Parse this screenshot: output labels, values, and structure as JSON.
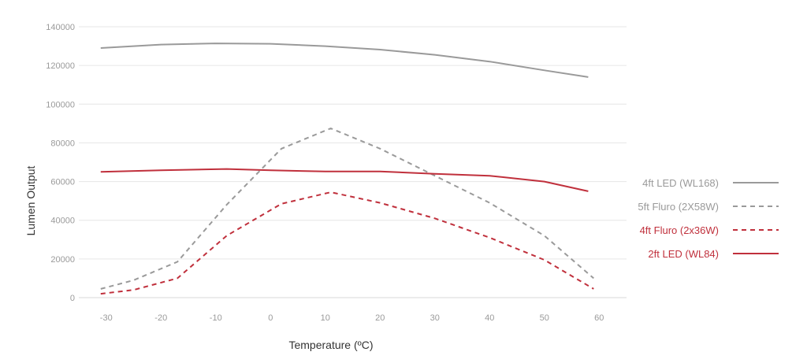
{
  "chart_data": {
    "type": "line",
    "xlabel": "Temperature (ºC)",
    "ylabel": "Lumen Output",
    "xlim": [
      -35,
      65
    ],
    "ylim": [
      0,
      140000
    ],
    "x_ticks": [
      "-30",
      "-20",
      "-10",
      "0",
      "10",
      "20",
      "30",
      "40",
      "50",
      "60"
    ],
    "y_ticks": [
      "0",
      "20000",
      "40000",
      "60000",
      "80000",
      "100000",
      "120000",
      "140000"
    ],
    "grid": "horizontal",
    "legend_position": "right",
    "series": [
      {
        "name": "4ft LED (WL168)",
        "color": "#9a9a9a",
        "dash": "solid",
        "points": [
          [
            -31,
            129000
          ],
          [
            -20,
            130800
          ],
          [
            -10,
            131400
          ],
          [
            0,
            131200
          ],
          [
            10,
            130000
          ],
          [
            20,
            128200
          ],
          [
            30,
            125500
          ],
          [
            40,
            122000
          ],
          [
            50,
            117500
          ],
          [
            58,
            114000
          ]
        ]
      },
      {
        "name": "5ft Fluro (2X58W)",
        "color": "#9a9a9a",
        "dash": "dashed",
        "points": [
          [
            -31,
            4500
          ],
          [
            -25,
            9000
          ],
          [
            -17,
            18500
          ],
          [
            -8,
            48000
          ],
          [
            2,
            77000
          ],
          [
            11,
            87500
          ],
          [
            20,
            77000
          ],
          [
            30,
            63000
          ],
          [
            40,
            49000
          ],
          [
            50,
            32000
          ],
          [
            59,
            10000
          ]
        ]
      },
      {
        "name": "4ft Fluro (2x36W)",
        "color": "#c0303c",
        "dash": "dashed",
        "points": [
          [
            -31,
            2000
          ],
          [
            -25,
            4000
          ],
          [
            -17,
            10000
          ],
          [
            -8,
            32000
          ],
          [
            2,
            48500
          ],
          [
            11,
            54500
          ],
          [
            20,
            49000
          ],
          [
            30,
            41000
          ],
          [
            40,
            31000
          ],
          [
            50,
            19500
          ],
          [
            59,
            4500
          ]
        ]
      },
      {
        "name": "2ft LED (WL84)",
        "color": "#c0303c",
        "dash": "solid",
        "points": [
          [
            -31,
            65000
          ],
          [
            -20,
            65800
          ],
          [
            -8,
            66500
          ],
          [
            0,
            65800
          ],
          [
            10,
            65200
          ],
          [
            20,
            65200
          ],
          [
            30,
            64000
          ],
          [
            40,
            63000
          ],
          [
            50,
            60000
          ],
          [
            58,
            55000
          ]
        ]
      }
    ]
  }
}
